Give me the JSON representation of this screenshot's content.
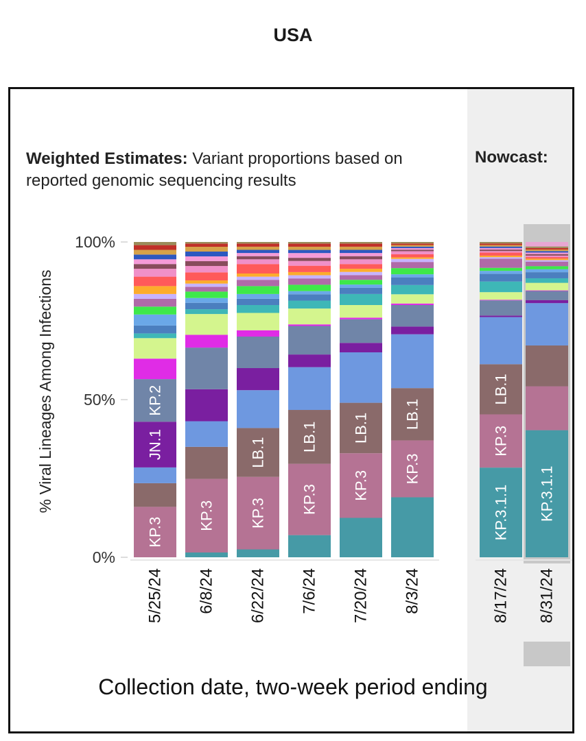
{
  "title": "USA",
  "subtitle_bold": "Weighted Estimates:",
  "subtitle_text": "Variant proportions based on reported genomic sequencing results",
  "nowcast_label": "Nowcast:",
  "chart_data": {
    "type": "bar",
    "stacked": true,
    "title": "USA",
    "xlabel": "Collection date, two-week period ending",
    "ylabel": "% Viral Lineages Among Infections",
    "ylim": [
      0,
      100
    ],
    "yticks": [
      "0%",
      "50%",
      "100%"
    ],
    "categories": [
      "5/25/24",
      "6/8/24",
      "6/22/24",
      "7/6/24",
      "7/20/24",
      "8/3/24",
      "8/17/24",
      "8/31/24"
    ],
    "nowcast_categories": [
      "8/17/24",
      "8/31/24"
    ],
    "highlighted_category": "8/31/24",
    "series": [
      {
        "name": "KP.3.1.1",
        "color": "#469aa6",
        "values": [
          0,
          1.5,
          2.5,
          7,
          12.5,
          19.5,
          29.5,
          42
        ],
        "labels": [
          "",
          "",
          "",
          "",
          "",
          "",
          "KP.3.1.1",
          "KP.3.1.1"
        ]
      },
      {
        "name": "KP.3",
        "color": "#b57394",
        "values": [
          16,
          23,
          23,
          22.5,
          20.5,
          18.5,
          17.5,
          14.5
        ],
        "labels": [
          "KP.3",
          "KP.3",
          "KP.3",
          "KP.3",
          "KP.3",
          "KP.3",
          "KP.3",
          ""
        ]
      },
      {
        "name": "LB.1",
        "color": "#8a6a6a",
        "values": [
          7.5,
          10,
          15.5,
          17,
          16,
          17,
          16.5,
          13.5
        ],
        "labels": [
          "",
          "",
          "LB.1",
          "LB.1",
          "LB.1",
          "LB.1",
          "LB.1",
          ""
        ]
      },
      {
        "name": "",
        "color": "#6e98e0",
        "values": [
          5,
          8,
          12,
          13.5,
          16,
          17.5,
          15.5,
          14
        ],
        "labels": [
          "",
          "",
          "",
          "",
          "",
          "",
          "",
          ""
        ]
      },
      {
        "name": "JN.1",
        "color": "#7a1fa0",
        "values": [
          14.5,
          10,
          7,
          4,
          3,
          2.5,
          0.5,
          1
        ],
        "labels": [
          "JN.1",
          "",
          "",
          "",
          "",
          "",
          "",
          ""
        ]
      },
      {
        "name": "KP.2",
        "color": "#7085a8",
        "values": [
          13.5,
          13,
          10,
          9,
          7.5,
          7,
          5,
          3
        ],
        "labels": [
          "KP.2",
          "",
          "",
          "",
          "",
          "",
          "",
          ""
        ]
      },
      {
        "name": "",
        "color": "#e02ce6",
        "values": [
          6.5,
          4,
          2,
          0.5,
          0.5,
          0.5,
          0.2,
          0.2
        ],
        "labels": [
          "",
          "",
          "",
          "",
          "",
          "",
          "",
          ""
        ]
      },
      {
        "name": "",
        "color": "#d4f58e",
        "values": [
          6.5,
          6.5,
          5.5,
          5,
          4,
          3,
          2.5,
          2.5
        ],
        "labels": [
          "",
          "",
          "",
          "",
          "",
          "",
          "",
          ""
        ]
      },
      {
        "name": "",
        "color": "#3eb7b7",
        "values": [
          1.5,
          1.5,
          2.5,
          2.5,
          3.5,
          3,
          3.5,
          1.5
        ],
        "labels": [
          "",
          "",
          "",
          "",
          "",
          "",
          "",
          ""
        ]
      },
      {
        "name": "",
        "color": "#4b7fbf",
        "values": [
          2.5,
          2,
          2,
          2,
          2,
          2.5,
          2.5,
          2
        ],
        "labels": [
          "",
          "",
          "",
          "",
          "",
          "",
          "",
          ""
        ]
      },
      {
        "name": "",
        "color": "#6aa8e8",
        "values": [
          3.5,
          1.5,
          1.5,
          1,
          1,
          1,
          1,
          1
        ],
        "labels": [
          "",
          "",
          "",
          "",
          "",
          "",
          "",
          ""
        ]
      },
      {
        "name": "",
        "color": "#3ee84a",
        "values": [
          2.5,
          2,
          2.5,
          2,
          1.5,
          2,
          1,
          1
        ],
        "labels": [
          "",
          "",
          "",
          "",
          "",
          "",
          "",
          ""
        ]
      },
      {
        "name": "",
        "color": "#b06aa8",
        "values": [
          2.5,
          1.5,
          2,
          2,
          1.5,
          2,
          3,
          1.5
        ],
        "labels": [
          "",
          "",
          "",
          "",
          "",
          "",
          "",
          ""
        ]
      },
      {
        "name": "",
        "color": "#c7b3ff",
        "values": [
          1.5,
          1,
          1,
          1,
          1,
          1,
          0.5,
          0.5
        ],
        "labels": [
          "",
          "",
          "",
          "",
          "",
          "",
          "",
          ""
        ]
      },
      {
        "name": "",
        "color": "#fcac2c",
        "values": [
          2.5,
          1,
          1,
          1,
          1,
          0.5,
          0.5,
          0.5
        ],
        "labels": [
          "",
          "",
          "",
          "",
          "",
          "",
          "",
          ""
        ]
      },
      {
        "name": "",
        "color": "#ff5a5a",
        "values": [
          3,
          2.5,
          3,
          2,
          1.5,
          1,
          1,
          0.5
        ],
        "labels": [
          "",
          "",
          "",
          "",
          "",
          "",
          "",
          ""
        ]
      },
      {
        "name": "",
        "color": "#f090c8",
        "values": [
          2.5,
          2,
          1.5,
          1.5,
          1.5,
          1,
          0.5,
          0.5
        ],
        "labels": [
          "",
          "",
          "",
          "",
          "",
          "",
          "",
          ""
        ]
      },
      {
        "name": "",
        "color": "#884c5c",
        "values": [
          1.5,
          1.5,
          1,
          1,
          1,
          0.5,
          0.5,
          0.5
        ],
        "labels": [
          "",
          "",
          "",
          "",
          "",
          "",
          "",
          ""
        ]
      },
      {
        "name": "",
        "color": "#f59bd8",
        "values": [
          1.5,
          1.5,
          1,
          1.5,
          1,
          0.5,
          0.5,
          0.5
        ],
        "labels": [
          "",
          "",
          "",
          "",
          "",
          "",
          "",
          ""
        ]
      },
      {
        "name": "",
        "color": "#2d58c0",
        "values": [
          1.5,
          1.5,
          1,
          1,
          1,
          0.5,
          0.5,
          0.5
        ],
        "labels": [
          "",
          "",
          "",
          "",
          "",
          "",
          "",
          ""
        ]
      },
      {
        "name": "",
        "color": "#d6a24a",
        "values": [
          1.5,
          1.5,
          1,
          1,
          1,
          0.5,
          0.5,
          0.5
        ],
        "labels": [
          "",
          "",
          "",
          "",
          "",
          "",
          "",
          ""
        ]
      },
      {
        "name": "",
        "color": "#c03028",
        "values": [
          1.5,
          1,
          1,
          1,
          1,
          0.5,
          0.5,
          0.5
        ],
        "labels": [
          "",
          "",
          "",
          "",
          "",
          "",
          "",
          ""
        ]
      },
      {
        "name": "",
        "color": "#9a8c5a",
        "values": [
          1,
          0.5,
          0.5,
          0.5,
          0.5,
          0.5,
          0.5,
          0.5
        ],
        "labels": [
          "",
          "",
          "",
          "",
          "",
          "",
          "",
          ""
        ]
      },
      {
        "name": "",
        "color": "#e8a6d2",
        "values": [
          0,
          0,
          0,
          0,
          0,
          0,
          0,
          1.5
        ],
        "labels": [
          "",
          "",
          "",
          "",
          "",
          "",
          "",
          ""
        ]
      }
    ],
    "grid": false,
    "legend": "none"
  }
}
